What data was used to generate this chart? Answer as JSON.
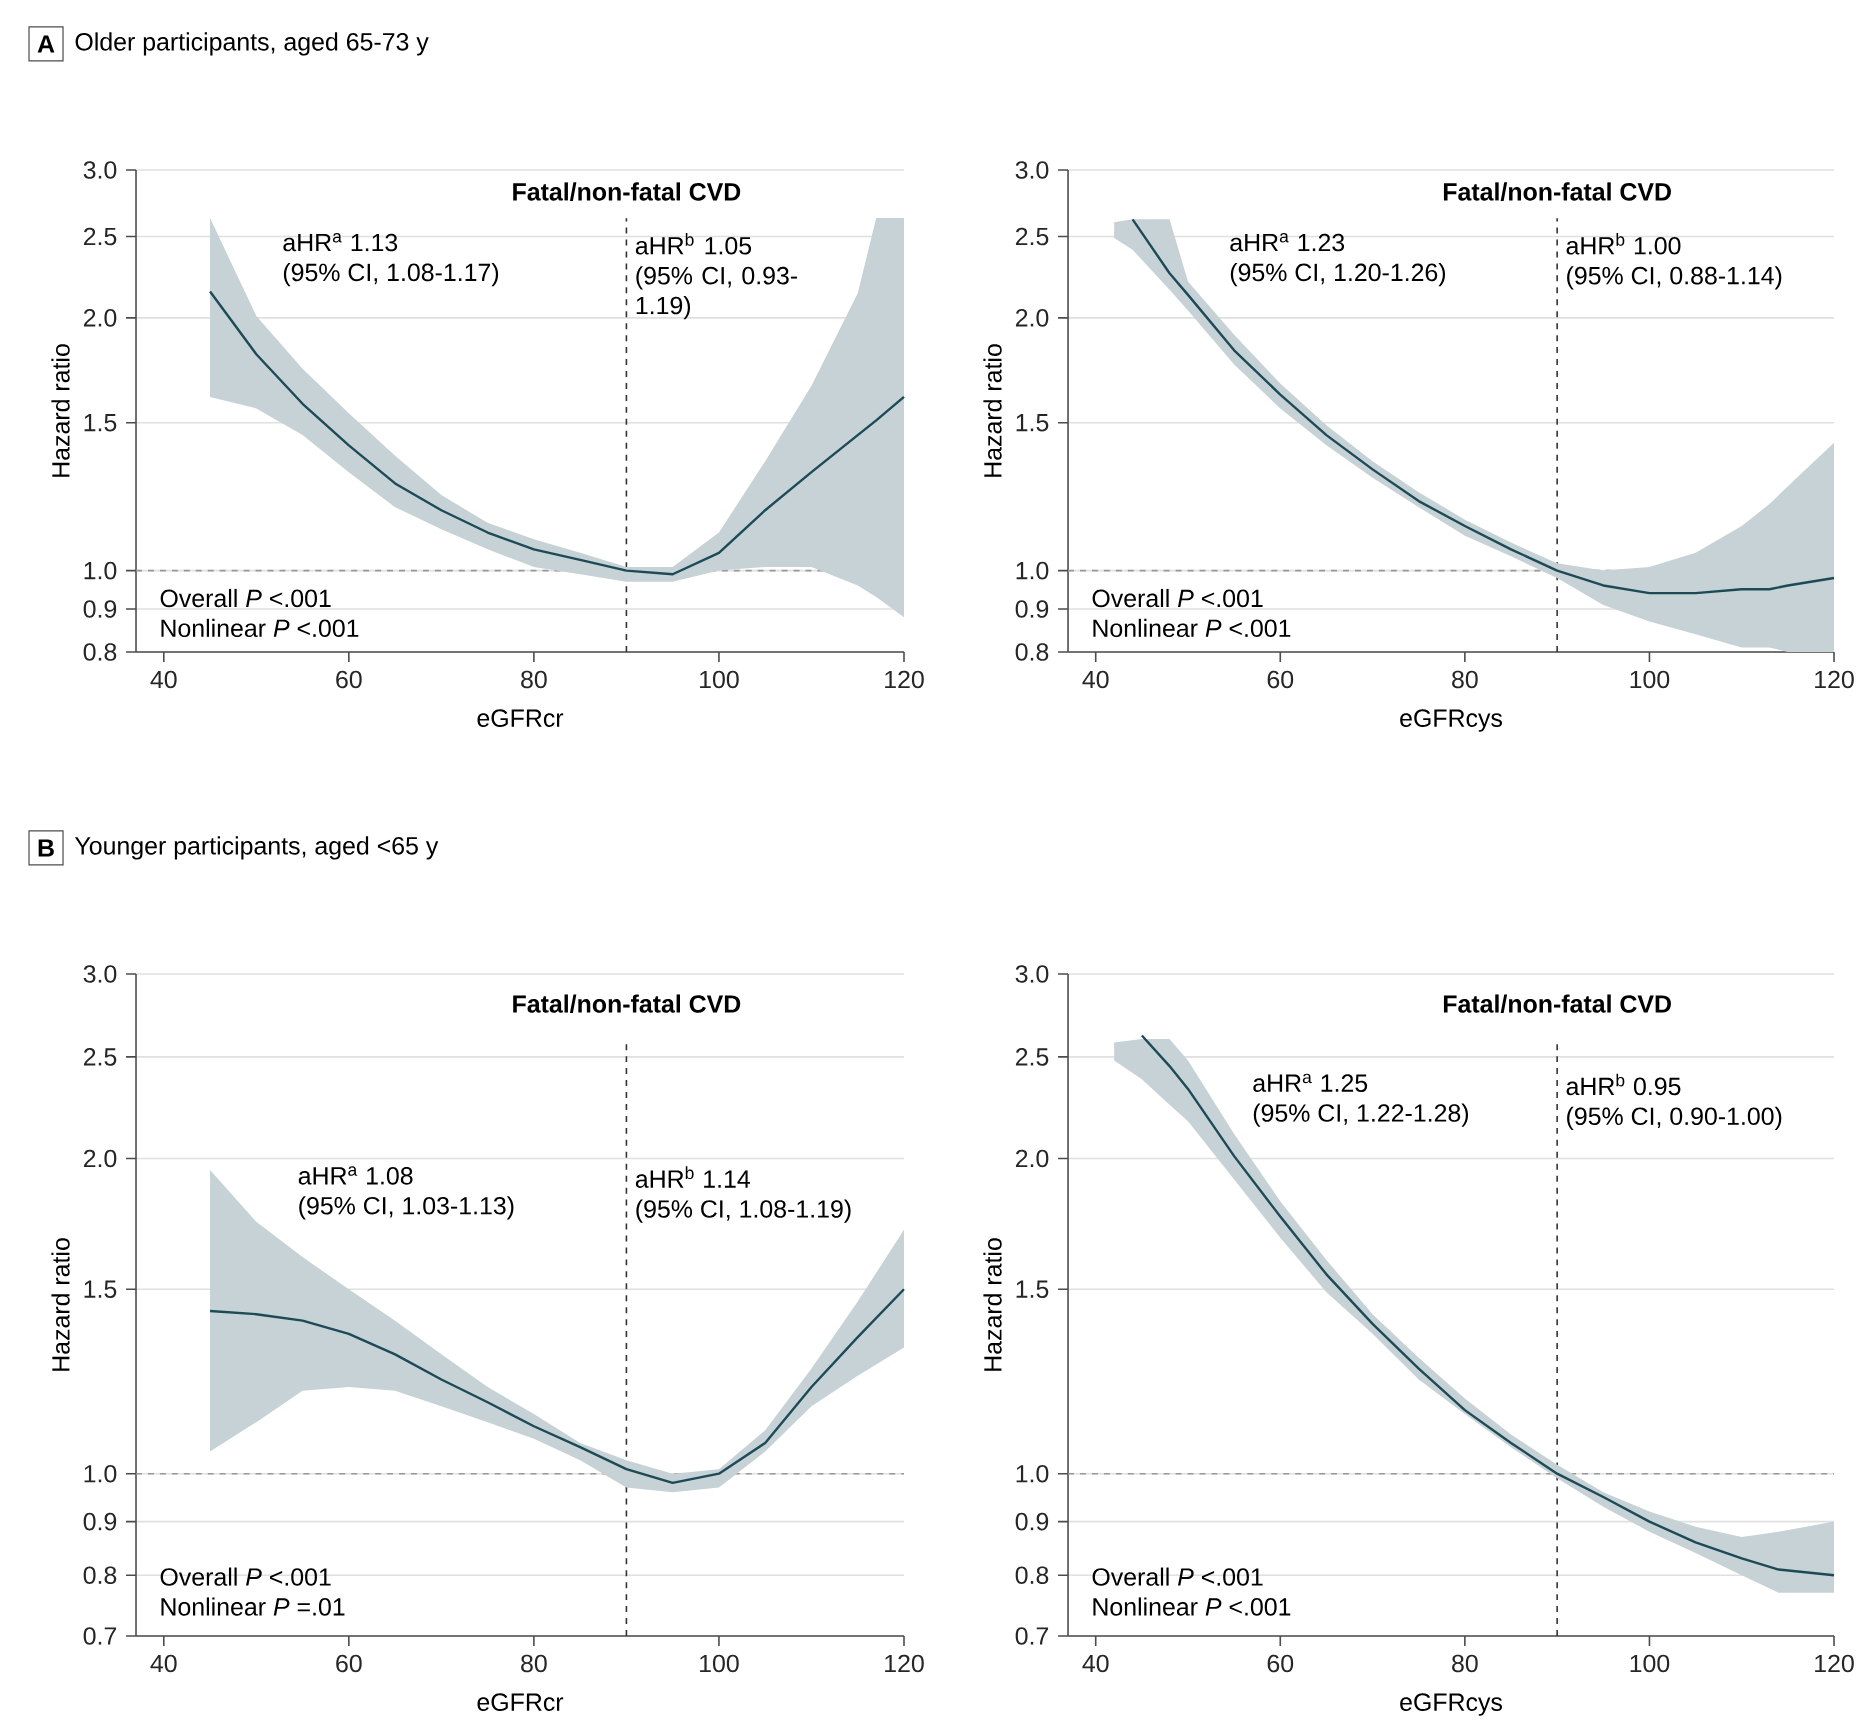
{
  "chart_data": [
    {
      "type": "line",
      "title": "Older participants, aged 65-73 y",
      "subtitle": "Fatal/non-fatal CVD",
      "xlabel": "eGFRcr",
      "ylabel": "Hazard ratio",
      "xlim": [
        37,
        120
      ],
      "xticks": [
        40,
        60,
        80,
        100,
        120
      ],
      "ylim": [
        0.8,
        3.0
      ],
      "yticks": [
        {
          "value": 0.8,
          "label": "0.8"
        },
        {
          "value": 0.9,
          "label": "0.9"
        },
        {
          "value": 1.0,
          "label": "1.0"
        },
        {
          "value": 1.5,
          "label": "1.5"
        },
        {
          "value": 2.0,
          "label": "2.0"
        },
        {
          "value": 2.5,
          "label": "2.5"
        },
        {
          "value": 3.0,
          "label": "3.0"
        }
      ],
      "log": "y",
      "grid": "y",
      "ref_lines": [
        {
          "axis": "x",
          "value": 90,
          "color": "#333333",
          "line_style": "dashed"
        },
        {
          "axis": "y",
          "value": 1.0,
          "color": "#999999",
          "line_style": "dashed"
        }
      ],
      "annotations": [
        "aHR$^{a}$ 1.13",
        "(95% CI, 1.08-1.17)",
        "aHR$^{b}$ 1.05",
        "(95% CI, 0.93-1.19)",
        "Overall *P* <.001",
        "Nonlinear *P* <.001",
        "A"
      ],
      "series": [
        {
          "color": "#1d4a57",
          "x": [
            45,
            50,
            55,
            60,
            65,
            70,
            75,
            80,
            85,
            90,
            95,
            100,
            105,
            110,
            115,
            117,
            120
          ],
          "values": [
            2.15,
            1.81,
            1.58,
            1.41,
            1.27,
            1.18,
            1.11,
            1.06,
            1.03,
            1.0,
            0.99,
            1.05,
            1.18,
            1.31,
            1.45,
            1.51,
            1.61
          ],
          "upper": [
            2.63,
            2.01,
            1.74,
            1.54,
            1.37,
            1.23,
            1.14,
            1.09,
            1.05,
            1.01,
            1.01,
            1.11,
            1.35,
            1.66,
            2.14,
            2.63,
            2.63
          ],
          "lower": [
            1.61,
            1.56,
            1.45,
            1.31,
            1.19,
            1.12,
            1.06,
            1.01,
            0.99,
            0.97,
            0.97,
            1.0,
            1.01,
            1.01,
            0.96,
            0.93,
            0.88
          ]
        }
      ]
    },
    {
      "type": "line",
      "subtitle": "Fatal/non-fatal CVD",
      "xlabel": "eGFRcys",
      "ylabel": "Hazard ratio",
      "xlim": [
        37,
        120
      ],
      "xticks": [
        40,
        60,
        80,
        100,
        120
      ],
      "ylim": [
        0.8,
        3.0
      ],
      "yticks": [
        {
          "value": 0.8,
          "label": "0.8"
        },
        {
          "value": 0.9,
          "label": "0.9"
        },
        {
          "value": 1.0,
          "label": "1.0"
        },
        {
          "value": 1.5,
          "label": "1.5"
        },
        {
          "value": 2.0,
          "label": "2.0"
        },
        {
          "value": 2.5,
          "label": "2.5"
        },
        {
          "value": 3.0,
          "label": "3.0"
        }
      ],
      "log": "y",
      "grid": "y",
      "ref_lines": [
        {
          "axis": "x",
          "value": 90,
          "color": "#333333",
          "line_style": "dashed"
        },
        {
          "axis": "y",
          "value": 1.0,
          "color": "#999999",
          "line_style": "dashed"
        }
      ],
      "annotations": [
        "aHR$^{a}$ 1.23",
        "(95% CI, 1.20-1.26)",
        "aHR$^{b}$ 1.00",
        "(95% CI, 0.88-1.14)",
        "Overall *P* <.001",
        "Nonlinear *P* <.001"
      ],
      "series": [
        {
          "color": "#1d4a57",
          "x": [
            42,
            44,
            48,
            50,
            55,
            60,
            65,
            70,
            75,
            80,
            85,
            90,
            95,
            100,
            105,
            110,
            113,
            115,
            120
          ],
          "values": [
            null,
            2.62,
            2.26,
            2.13,
            1.83,
            1.62,
            1.45,
            1.32,
            1.21,
            1.13,
            1.06,
            1.0,
            0.96,
            0.94,
            0.94,
            0.95,
            0.95,
            0.96,
            0.98
          ],
          "upper": [
            2.6,
            2.62,
            2.62,
            2.21,
            1.91,
            1.67,
            1.49,
            1.35,
            1.24,
            1.15,
            1.08,
            1.02,
            1.0,
            1.01,
            1.05,
            1.13,
            1.2,
            1.26,
            1.42
          ],
          "lower": [
            2.49,
            2.41,
            2.16,
            2.04,
            1.76,
            1.56,
            1.41,
            1.29,
            1.19,
            1.1,
            1.04,
            0.98,
            0.91,
            0.87,
            0.84,
            0.81,
            0.81,
            0.8,
            0.8
          ]
        }
      ]
    },
    {
      "type": "line",
      "title": "Younger participants, aged <65 y",
      "subtitle": "Fatal/non-fatal CVD",
      "xlabel": "eGFRcr",
      "ylabel": "Hazard ratio",
      "xlim": [
        37,
        120
      ],
      "xticks": [
        40,
        60,
        80,
        100,
        120
      ],
      "ylim": [
        0.7,
        3.0
      ],
      "yticks": [
        {
          "value": 0.7,
          "label": "0.7"
        },
        {
          "value": 0.8,
          "label": "0.8"
        },
        {
          "value": 0.9,
          "label": "0.9"
        },
        {
          "value": 1.0,
          "label": "1.0"
        },
        {
          "value": 1.5,
          "label": "1.5"
        },
        {
          "value": 2.0,
          "label": "2.0"
        },
        {
          "value": 2.5,
          "label": "2.5"
        },
        {
          "value": 3.0,
          "label": "3.0"
        }
      ],
      "log": "y",
      "grid": "y",
      "ref_lines": [
        {
          "axis": "x",
          "value": 90,
          "color": "#333333",
          "line_style": "dashed"
        },
        {
          "axis": "y",
          "value": 1.0,
          "color": "#999999",
          "line_style": "dashed"
        }
      ],
      "annotations": [
        "aHR$^{a}$ 1.08",
        "(95% CI, 1.03-1.13)",
        "aHR$^{b}$ 1.14",
        "(95% CI, 1.08-1.19)",
        "Overall *P* <.001",
        "Nonlinear *P* =.01",
        "B"
      ],
      "series": [
        {
          "color": "#1d4a57",
          "x": [
            45,
            50,
            55,
            60,
            65,
            70,
            75,
            80,
            85,
            90,
            95,
            100,
            105,
            110,
            115,
            120
          ],
          "values": [
            1.43,
            1.42,
            1.4,
            1.36,
            1.3,
            1.23,
            1.17,
            1.11,
            1.06,
            1.01,
            0.98,
            1.0,
            1.07,
            1.21,
            1.35,
            1.5
          ],
          "upper": [
            1.95,
            1.74,
            1.61,
            1.5,
            1.4,
            1.3,
            1.21,
            1.14,
            1.07,
            1.03,
            1.0,
            1.01,
            1.1,
            1.26,
            1.46,
            1.71
          ],
          "lower": [
            1.05,
            1.12,
            1.2,
            1.21,
            1.2,
            1.16,
            1.12,
            1.08,
            1.03,
            0.97,
            0.96,
            0.97,
            1.05,
            1.16,
            1.24,
            1.32
          ]
        }
      ]
    },
    {
      "type": "line",
      "subtitle": "Fatal/non-fatal CVD",
      "xlabel": "eGFRcys",
      "ylabel": "Hazard ratio",
      "xlim": [
        37,
        120
      ],
      "xticks": [
        40,
        60,
        80,
        100,
        120
      ],
      "ylim": [
        0.7,
        3.0
      ],
      "yticks": [
        {
          "value": 0.7,
          "label": "0.7"
        },
        {
          "value": 0.8,
          "label": "0.8"
        },
        {
          "value": 0.9,
          "label": "0.9"
        },
        {
          "value": 1.0,
          "label": "1.0"
        },
        {
          "value": 1.5,
          "label": "1.5"
        },
        {
          "value": 2.0,
          "label": "2.0"
        },
        {
          "value": 2.5,
          "label": "2.5"
        },
        {
          "value": 3.0,
          "label": "3.0"
        }
      ],
      "log": "y",
      "grid": "y",
      "ref_lines": [
        {
          "axis": "x",
          "value": 90,
          "color": "#333333",
          "line_style": "dashed"
        },
        {
          "axis": "y",
          "value": 1.0,
          "color": "#999999",
          "line_style": "dashed"
        }
      ],
      "annotations": [
        "aHR$^{a}$ 1.25",
        "(95% CI, 1.22-1.28)",
        "aHR$^{b}$ 0.95",
        "(95% CI, 0.90-1.00)",
        "Overall *P* <.001",
        "Nonlinear *P* <.001"
      ],
      "series": [
        {
          "color": "#1d4a57",
          "x": [
            42,
            45,
            48,
            50,
            55,
            60,
            65,
            70,
            75,
            80,
            85,
            90,
            95,
            100,
            105,
            110,
            114,
            120
          ],
          "values": [
            null,
            2.62,
            2.45,
            2.33,
            2.01,
            1.76,
            1.55,
            1.39,
            1.26,
            1.15,
            1.07,
            1.0,
            0.95,
            0.9,
            0.86,
            0.83,
            0.81,
            0.8
          ],
          "upper": [
            2.58,
            2.6,
            2.6,
            2.48,
            2.11,
            1.82,
            1.6,
            1.42,
            1.29,
            1.18,
            1.09,
            1.02,
            0.96,
            0.92,
            0.89,
            0.87,
            0.88,
            0.9
          ],
          "lower": [
            2.48,
            2.38,
            2.25,
            2.17,
            1.91,
            1.68,
            1.49,
            1.36,
            1.23,
            1.14,
            1.06,
            0.99,
            0.93,
            0.88,
            0.84,
            0.8,
            0.77,
            0.77
          ]
        }
      ]
    }
  ]
}
